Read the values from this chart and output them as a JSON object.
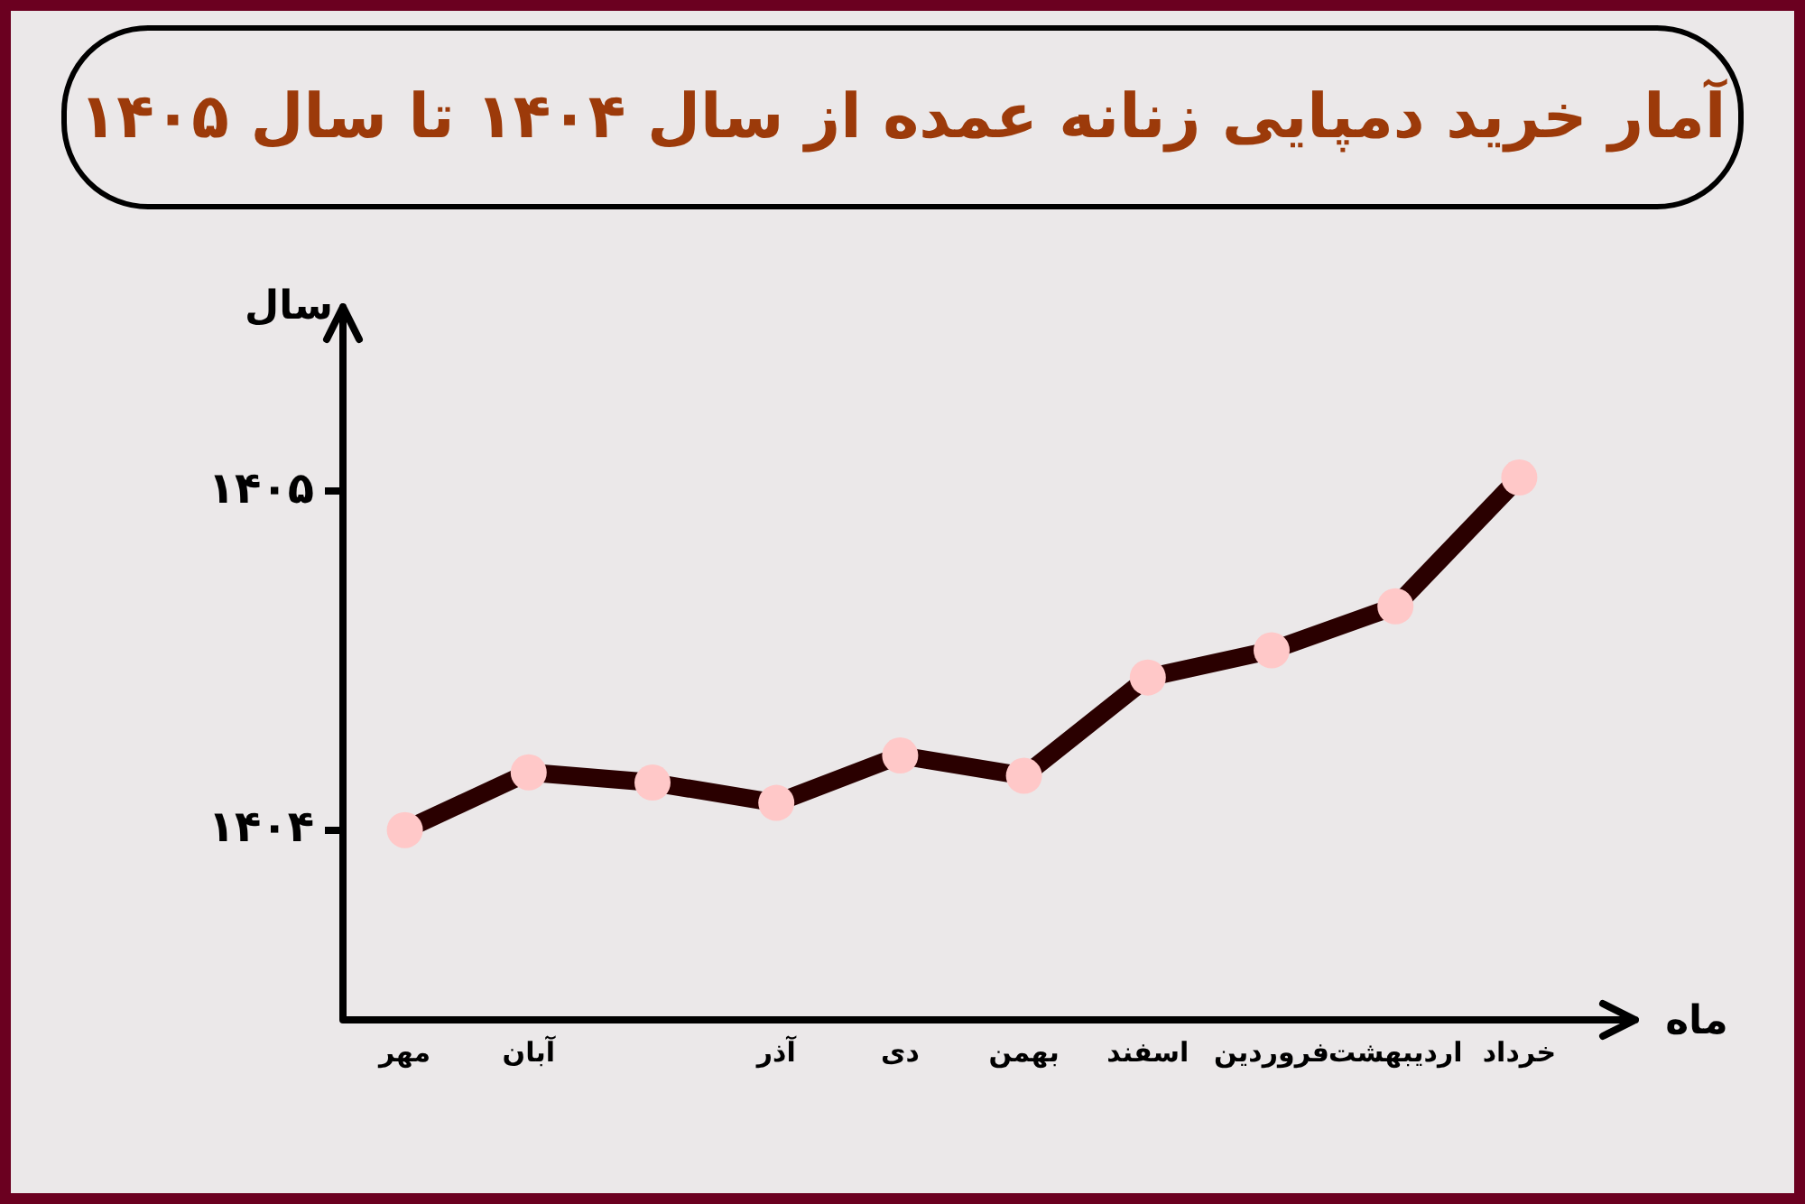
{
  "chart_data": {
    "type": "line",
    "title": "آمار خرید دمپایی زنانه عمده از سال ۱۴۰۴ تا سال ۱۴۰۵",
    "xlabel": "ماه",
    "ylabel": "سال",
    "categories": [
      "مهر",
      "آبان",
      null,
      "آذر",
      "دی",
      "بهمن",
      "اسفند",
      "فروردین",
      "اردیبهشت",
      "خرداد"
    ],
    "series": [
      {
        "color": "#2a0000",
        "colors": [
          "#ffc8c8",
          "#ffc8c8",
          "#ffc8c8",
          "#ffc8c8",
          "#ffc8c8",
          "#ffc8c8",
          "#ffc8c8",
          "#ffc8c8",
          "#ffc8c8",
          "#ffc8c8"
        ],
        "values": [
          1404.0,
          1404.17,
          1404.14,
          1404.08,
          1404.22,
          1404.16,
          1404.45,
          1404.53,
          1404.66,
          1405.04
        ]
      }
    ],
    "ylim": [
      1403.44,
      1405.49
    ],
    "yticks": [
      {
        "value": 1404,
        "label": "۱۴۰۴"
      },
      {
        "value": 1405,
        "label": "۱۴۰۵"
      }
    ],
    "marker": "circle",
    "line_style": "solid",
    "legend": false
  }
}
